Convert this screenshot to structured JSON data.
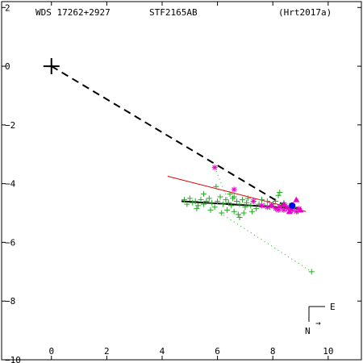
{
  "header": {
    "left": "WDS 17262+2927",
    "center": "STF2165AB",
    "right": "(Hrt2017a)"
  },
  "compass": {
    "east_label": "E",
    "north_label": "N",
    "arrow": "→"
  },
  "colors": {
    "axes": "#000000",
    "green_obs": "#22aa22",
    "magenta_obs": "#ee00cc",
    "red_line": "#e00000",
    "blue_point": "#0000ee",
    "black_orbit": "#000000"
  },
  "chart_data": {
    "type": "scatter",
    "title": "",
    "xlabel": "",
    "ylabel": "",
    "xlim": [
      -1.8,
      11.2
    ],
    "ylim": [
      -10.0,
      2.2
    ],
    "x_ticks": [
      0,
      2,
      4,
      6,
      8,
      10
    ],
    "y_ticks": [
      2,
      0,
      -2,
      -4,
      -6,
      -8,
      -10
    ],
    "x_tick_labels": [
      "0",
      "2",
      "4",
      "6",
      "8",
      "10"
    ],
    "y_tick_labels": [
      "2",
      "0",
      "−2",
      "−4",
      "−6",
      "−8",
      "−10"
    ],
    "primary": [
      0,
      0
    ],
    "dashed_line": [
      [
        0,
        0
      ],
      [
        8.7,
        -4.9
      ]
    ],
    "solid_black_line": [
      [
        4.7,
        -4.6
      ],
      [
        9.0,
        -4.85
      ]
    ],
    "red_line": [
      [
        4.2,
        -3.75
      ],
      [
        9.2,
        -4.95
      ]
    ],
    "dotted_lines": [
      [
        [
          5.9,
          -3.45
        ],
        [
          6.4,
          -4.6
        ]
      ],
      [
        [
          6.1,
          -5.0
        ],
        [
          9.4,
          -7.0
        ]
      ]
    ],
    "series": [
      {
        "marker": "plus",
        "points": [
          [
            4.8,
            -4.55
          ],
          [
            4.9,
            -4.7
          ],
          [
            5.0,
            -4.5
          ],
          [
            5.1,
            -4.65
          ],
          [
            5.2,
            -4.6
          ],
          [
            5.3,
            -4.75
          ],
          [
            5.4,
            -4.55
          ],
          [
            5.5,
            -4.7
          ],
          [
            5.6,
            -4.6
          ],
          [
            5.7,
            -4.5
          ],
          [
            5.8,
            -4.65
          ],
          [
            5.9,
            -4.8
          ],
          [
            6.0,
            -4.6
          ],
          [
            6.1,
            -4.45
          ],
          [
            6.2,
            -4.7
          ],
          [
            6.3,
            -4.55
          ],
          [
            6.35,
            -4.9
          ],
          [
            6.4,
            -4.65
          ],
          [
            6.5,
            -4.75
          ],
          [
            6.55,
            -4.5
          ],
          [
            6.6,
            -4.95
          ],
          [
            6.7,
            -4.6
          ],
          [
            6.75,
            -5.05
          ],
          [
            6.8,
            -4.7
          ],
          [
            6.9,
            -4.55
          ],
          [
            7.0,
            -4.8
          ],
          [
            7.05,
            -4.65
          ],
          [
            7.1,
            -4.5
          ],
          [
            7.2,
            -4.75
          ],
          [
            7.3,
            -4.6
          ],
          [
            7.4,
            -4.85
          ],
          [
            7.5,
            -4.7
          ],
          [
            7.6,
            -4.55
          ],
          [
            7.7,
            -4.75
          ],
          [
            7.8,
            -4.6
          ],
          [
            7.9,
            -4.8
          ],
          [
            8.0,
            -4.7
          ],
          [
            8.1,
            -4.6
          ],
          [
            8.2,
            -4.4
          ],
          [
            8.3,
            -4.75
          ],
          [
            8.4,
            -4.65
          ],
          [
            8.5,
            -4.85
          ],
          [
            8.6,
            -4.75
          ],
          [
            8.7,
            -4.9
          ],
          [
            8.8,
            -4.8
          ],
          [
            8.9,
            -4.95
          ],
          [
            5.95,
            -4.1
          ],
          [
            5.5,
            -4.35
          ],
          [
            6.45,
            -4.35
          ],
          [
            8.25,
            -4.3
          ],
          [
            6.8,
            -5.15
          ],
          [
            6.15,
            -5.0
          ],
          [
            9.4,
            -7.0
          ],
          [
            6.6,
            -4.45
          ],
          [
            7.25,
            -4.95
          ],
          [
            5.25,
            -4.85
          ],
          [
            5.75,
            -4.9
          ],
          [
            6.95,
            -5.0
          ]
        ]
      },
      {
        "marker": "star",
        "points": [
          [
            5.9,
            -3.45
          ],
          [
            6.6,
            -4.2
          ],
          [
            7.3,
            -4.6
          ],
          [
            7.6,
            -4.75
          ],
          [
            7.8,
            -4.8
          ],
          [
            7.95,
            -4.75
          ],
          [
            8.1,
            -4.85
          ],
          [
            8.25,
            -4.8
          ],
          [
            8.4,
            -4.9
          ],
          [
            8.55,
            -4.85
          ],
          [
            8.7,
            -4.9
          ],
          [
            8.85,
            -4.95
          ],
          [
            8.95,
            -4.85
          ],
          [
            8.2,
            -4.9
          ],
          [
            8.45,
            -4.75
          ]
        ]
      },
      {
        "marker": "triangle",
        "points": [
          [
            8.85,
            -4.55
          ],
          [
            9.0,
            -4.9
          ],
          [
            8.6,
            -4.95
          ],
          [
            8.4,
            -4.7
          ]
        ]
      },
      {
        "marker": "circle",
        "points": [
          [
            8.7,
            -4.75
          ]
        ]
      }
    ]
  }
}
